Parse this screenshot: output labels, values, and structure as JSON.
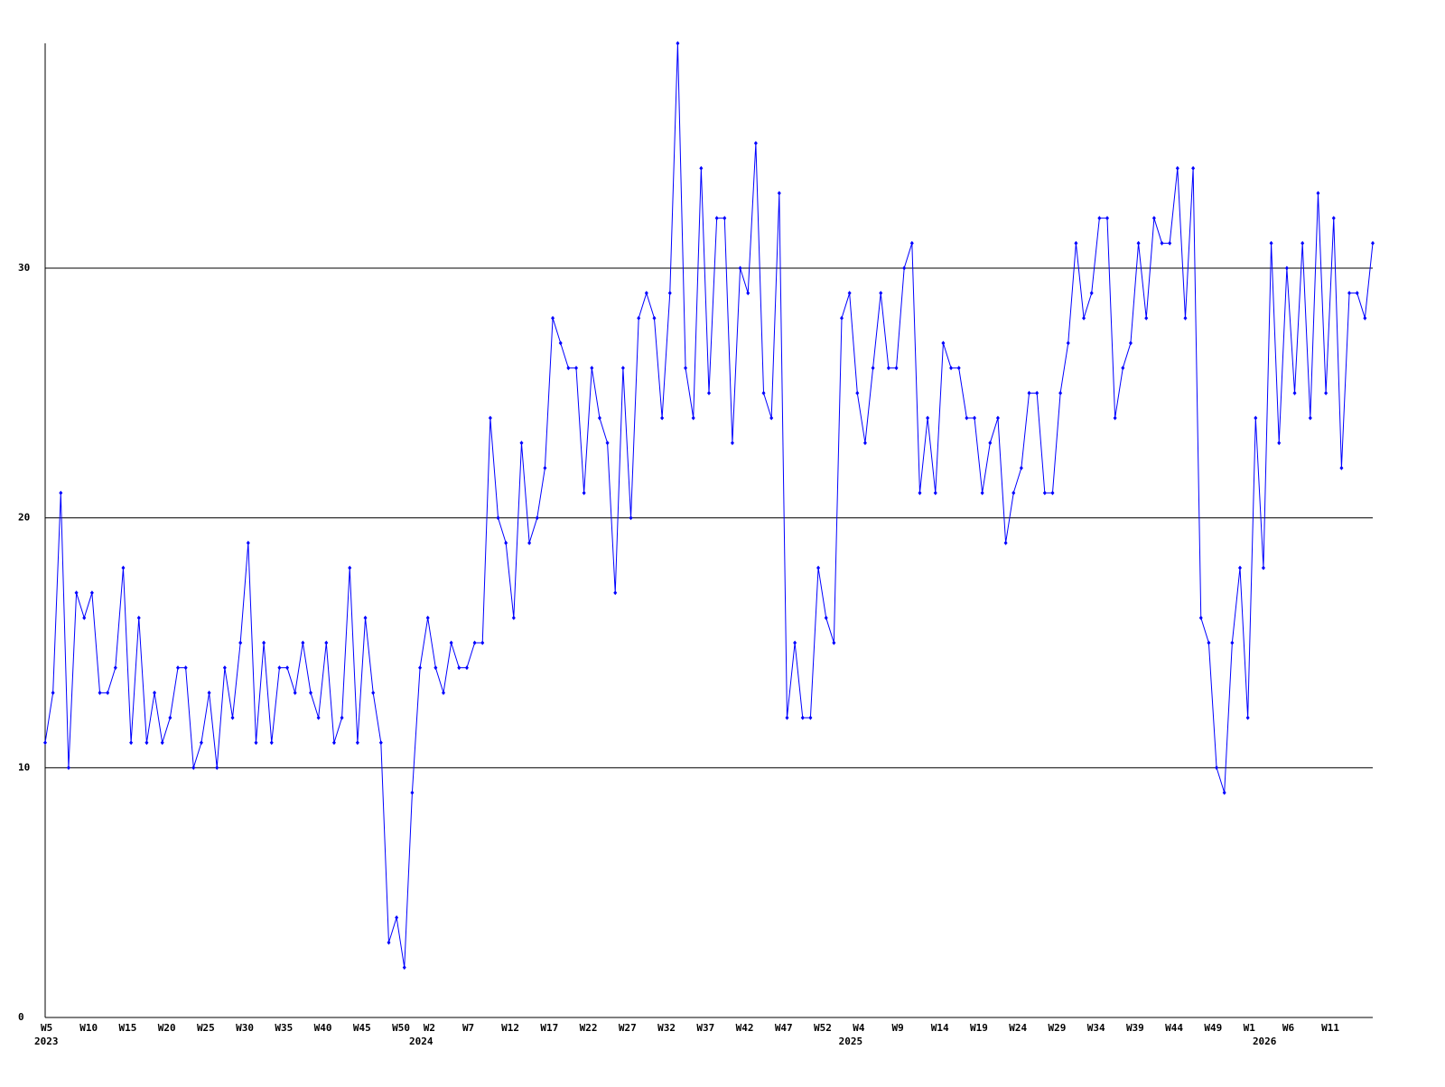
{
  "chart_data": {
    "type": "line",
    "categories": [
      "W5",
      null,
      null,
      null,
      null,
      "W10",
      null,
      null,
      null,
      null,
      "W15",
      null,
      null,
      null,
      null,
      "W20",
      null,
      null,
      null,
      null,
      "W25",
      null,
      null,
      null,
      null,
      "W30",
      null,
      null,
      null,
      null,
      "W35",
      null,
      null,
      null,
      null,
      "W40",
      null,
      null,
      null,
      null,
      "W45",
      null,
      null,
      null,
      null,
      "W50",
      null,
      null,
      null,
      "W2",
      null,
      null,
      null,
      null,
      "W7",
      null,
      null,
      null,
      null,
      "W12",
      null,
      null,
      null,
      null,
      "W17",
      null,
      null,
      null,
      null,
      "W22",
      null,
      null,
      null,
      null,
      "W27",
      null,
      null,
      null,
      null,
      "W32",
      null,
      null,
      null,
      null,
      "W37",
      null,
      null,
      null,
      null,
      "W42",
      null,
      null,
      null,
      null,
      "W47",
      null,
      null,
      null,
      null,
      "W52",
      null,
      null,
      null,
      null,
      "W4",
      null,
      null,
      null,
      null,
      "W9",
      null,
      null,
      null,
      null,
      "W14",
      null,
      null,
      null,
      null,
      "W19",
      null,
      null,
      null,
      null,
      "W24",
      null,
      null,
      null,
      null,
      "W29",
      null,
      null,
      null,
      null,
      "W34",
      null,
      null,
      null,
      null,
      "W39",
      null,
      null,
      null,
      null,
      "W44",
      null,
      null,
      null,
      null,
      "W49",
      null,
      null,
      null,
      null,
      "W1",
      null,
      null,
      null,
      null,
      "W6",
      null,
      null,
      null,
      null,
      "W11",
      null,
      null,
      null,
      null,
      null,
      null
    ],
    "year_labels": [
      "2023",
      null,
      null,
      null,
      null,
      null,
      null,
      null,
      null,
      null,
      null,
      null,
      null,
      null,
      null,
      null,
      null,
      null,
      null,
      null,
      null,
      null,
      null,
      null,
      null,
      null,
      null,
      null,
      null,
      null,
      null,
      null,
      null,
      null,
      null,
      null,
      null,
      null,
      null,
      null,
      null,
      null,
      null,
      null,
      null,
      null,
      null,
      null,
      "2024",
      null,
      null,
      null,
      null,
      null,
      null,
      null,
      null,
      null,
      null,
      null,
      null,
      null,
      null,
      null,
      null,
      null,
      null,
      null,
      null,
      null,
      null,
      null,
      null,
      null,
      null,
      null,
      null,
      null,
      null,
      null,
      null,
      null,
      null,
      null,
      null,
      null,
      null,
      null,
      null,
      null,
      null,
      null,
      null,
      null,
      null,
      null,
      null,
      null,
      null,
      null,
      null,
      null,
      null,
      "2025",
      null,
      null,
      null,
      null,
      null,
      null,
      null,
      null,
      null,
      null,
      null,
      null,
      null,
      null,
      null,
      null,
      null,
      null,
      null,
      null,
      null,
      null,
      null,
      null,
      null,
      null,
      null,
      null,
      null,
      null,
      null,
      null,
      null,
      null,
      null,
      null,
      null,
      null,
      null,
      null,
      null,
      null,
      null,
      null,
      null,
      null,
      null,
      null,
      null,
      null,
      null,
      null,
      "2026",
      null,
      null,
      null,
      null,
      null,
      null,
      null,
      null,
      null,
      null,
      null,
      null,
      null,
      null,
      null,
      null
    ],
    "series": [
      {
        "color": "#0000ff",
        "values": [
          11,
          13,
          21,
          10,
          17,
          16,
          17,
          13,
          13,
          14,
          18,
          11,
          16,
          11,
          13,
          11,
          12,
          14,
          14,
          10,
          11,
          13,
          10,
          14,
          12,
          15,
          19,
          11,
          15,
          11,
          14,
          14,
          13,
          15,
          13,
          12,
          15,
          11,
          12,
          18,
          11,
          16,
          13,
          11,
          3,
          4,
          2,
          9,
          14,
          16,
          14,
          13,
          15,
          14,
          14,
          15,
          15,
          24,
          20,
          19,
          16,
          23,
          19,
          20,
          22,
          28,
          27,
          26,
          26,
          21,
          26,
          24,
          23,
          17,
          26,
          20,
          28,
          29,
          28,
          24,
          29,
          39,
          26,
          24,
          34,
          25,
          32,
          32,
          23,
          30,
          29,
          35,
          25,
          24,
          33,
          12,
          15,
          12,
          12,
          18,
          16,
          15,
          28,
          29,
          25,
          23,
          26,
          29,
          26,
          26,
          30,
          31,
          21,
          24,
          21,
          27,
          26,
          26,
          24,
          24,
          21,
          23,
          24,
          19,
          21,
          22,
          25,
          25,
          21,
          21,
          25,
          27,
          31,
          28,
          29,
          32,
          32,
          24,
          26,
          27,
          31,
          28,
          32,
          31,
          31,
          34,
          28,
          34,
          16,
          15,
          10,
          9,
          15,
          18,
          12,
          24,
          18,
          31,
          23,
          30,
          25,
          31,
          24,
          33,
          25,
          32,
          22,
          29,
          29,
          28,
          31
        ]
      }
    ],
    "ylim": [
      0,
      39
    ],
    "yticks": [
      0,
      10,
      20,
      30
    ],
    "grid": true
  }
}
